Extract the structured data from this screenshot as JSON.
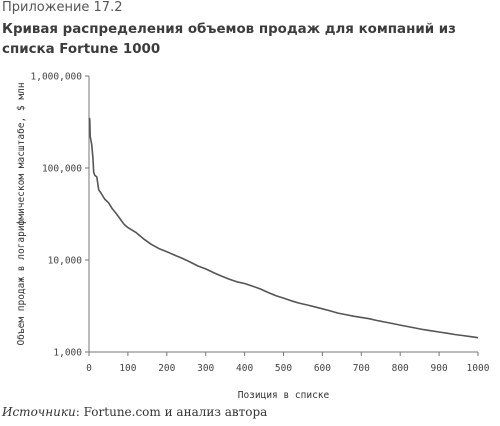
{
  "header": {
    "eyebrow": "Приложение 17.2",
    "title": "Кривая распределения объемов продаж для компаний из списка Fortune 1000"
  },
  "chart_data": {
    "type": "line",
    "title": "Кривая распределения объемов продаж для компаний из списка Fortune 1000",
    "xlabel": "Позиция в списке",
    "ylabel": "Объем продаж в логарифмическом масштабе, $ млн",
    "xlim": [
      0,
      1000
    ],
    "ylim": [
      1000,
      1000000
    ],
    "yscale": "log",
    "grid": false,
    "x_ticks": [
      0,
      100,
      200,
      300,
      400,
      500,
      600,
      700,
      800,
      900,
      1000
    ],
    "x_tick_labels": [
      "0",
      "100",
      "200",
      "300",
      "400",
      "500",
      "600",
      "700",
      "800",
      "900",
      "1000"
    ],
    "y_ticks": [
      1000,
      10000,
      100000,
      1000000
    ],
    "y_tick_labels": [
      "1,000",
      "10,000",
      "100,000",
      "1,000,000"
    ],
    "line_color": "#555555",
    "series": [
      {
        "x": [
          1,
          2,
          3,
          5,
          7,
          10,
          12,
          15,
          20,
          25,
          30,
          40,
          50,
          60,
          70,
          80,
          90,
          100,
          120,
          140,
          160,
          180,
          200,
          220,
          240,
          260,
          280,
          300,
          320,
          340,
          360,
          380,
          400,
          420,
          440,
          460,
          480,
          500,
          520,
          540,
          560,
          580,
          600,
          620,
          640,
          660,
          680,
          700,
          720,
          740,
          760,
          780,
          800,
          820,
          840,
          860,
          880,
          900,
          920,
          940,
          960,
          980,
          1000
        ],
        "y": [
          350000,
          330000,
          220000,
          200000,
          180000,
          130000,
          90000,
          83000,
          80000,
          58000,
          54000,
          46000,
          42000,
          36000,
          32000,
          28000,
          24500,
          22500,
          20000,
          17000,
          14800,
          13300,
          12300,
          11300,
          10400,
          9500,
          8600,
          8000,
          7300,
          6700,
          6200,
          5800,
          5550,
          5200,
          4850,
          4450,
          4100,
          3850,
          3600,
          3400,
          3250,
          3100,
          2950,
          2800,
          2650,
          2550,
          2450,
          2380,
          2300,
          2200,
          2120,
          2040,
          1960,
          1890,
          1820,
          1750,
          1700,
          1650,
          1600,
          1550,
          1510,
          1470,
          1430
        ]
      }
    ]
  },
  "footer": {
    "source_label": "Источники",
    "source_text": ": Fortune.com и анализ автора"
  }
}
